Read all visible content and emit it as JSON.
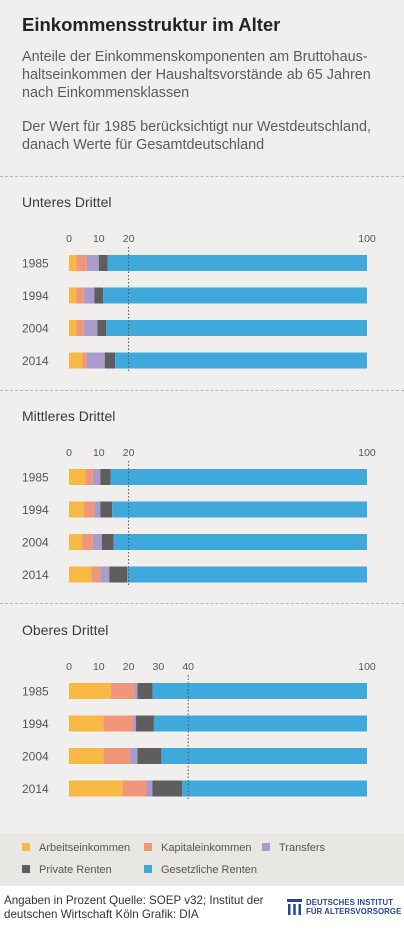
{
  "header": {
    "title": "Einkommensstruktur im Alter",
    "subtitle": "Anteile der Einkommenskomponenten am Bruttohaus-haltseinkommen der Haushaltsvorstände ab 65 Jahren nach Einkommensklassen",
    "note": "Der Wert für 1985 berücksichtigt nur Westdeutschland, danach Werte für Gesamtdeutschland"
  },
  "colors": {
    "Arbeitseinkommen": "#f7b844",
    "Kapitaleinkommen": "#f0977a",
    "Transfers": "#a99bcb",
    "Private Renten": "#5e5e5e",
    "Gesetzliche Renten": "#3fa9dc"
  },
  "legend": {
    "items": [
      "Arbeitseinkommen",
      "Kapitaleinkommen",
      "Transfers",
      "Private Renten",
      "Gesetzliche Renten"
    ]
  },
  "footer": {
    "source": "Angaben in Prozent  Quelle: SOEP v32; Institut der deutschen Wirtschaft Köln Grafik: DIA",
    "logo_line1": "DEUTSCHES INSTITUT",
    "logo_line2": "FÜR ALTERSVORSORGE"
  },
  "chart_data": [
    {
      "type": "bar",
      "orientation": "horizontal",
      "stacked": true,
      "title": "Unteres Drittel",
      "categories": [
        "1985",
        "1994",
        "2004",
        "2014"
      ],
      "xlim": [
        0,
        100
      ],
      "xticks": [
        0,
        10,
        20,
        100
      ],
      "reference_line": 20,
      "series": [
        {
          "name": "Arbeitseinkommen",
          "values": [
            2.5,
            2.5,
            2.5,
            4.5
          ]
        },
        {
          "name": "Kapitaleinkommen",
          "values": [
            3.5,
            2.5,
            2.5,
            1.5
          ]
        },
        {
          "name": "Transfers",
          "values": [
            4,
            3.5,
            4.5,
            6
          ]
        },
        {
          "name": "Private Renten",
          "values": [
            3,
            3,
            3,
            3.5
          ]
        },
        {
          "name": "Gesetzliche Renten",
          "values": [
            87,
            88.5,
            87.5,
            84.5
          ]
        }
      ]
    },
    {
      "type": "bar",
      "orientation": "horizontal",
      "stacked": true,
      "title": "Mittleres Drittel",
      "categories": [
        "1985",
        "1994",
        "2004",
        "2014"
      ],
      "xlim": [
        0,
        100
      ],
      "xticks": [
        0,
        10,
        20,
        100
      ],
      "reference_line": 20,
      "series": [
        {
          "name": "Arbeitseinkommen",
          "values": [
            5.5,
            5,
            4.5,
            7.5
          ]
        },
        {
          "name": "Kapitaleinkommen",
          "values": [
            2.5,
            3.5,
            3.5,
            3
          ]
        },
        {
          "name": "Transfers",
          "values": [
            2.5,
            2,
            3,
            3
          ]
        },
        {
          "name": "Private Renten",
          "values": [
            3.5,
            4,
            4,
            6
          ]
        },
        {
          "name": "Gesetzliche Renten",
          "values": [
            86,
            85.5,
            85,
            80.5
          ]
        }
      ]
    },
    {
      "type": "bar",
      "orientation": "horizontal",
      "stacked": true,
      "title": "Oberes Drittel",
      "categories": [
        "1985",
        "1994",
        "2004",
        "2014"
      ],
      "xlim": [
        0,
        100
      ],
      "xticks": [
        0,
        10,
        20,
        30,
        40,
        100
      ],
      "reference_line": 40,
      "series": [
        {
          "name": "Arbeitseinkommen",
          "values": [
            14,
            11.5,
            11.5,
            18
          ]
        },
        {
          "name": "Kapitaleinkommen",
          "values": [
            8,
            10,
            9,
            8
          ]
        },
        {
          "name": "Transfers",
          "values": [
            1,
            1,
            2.5,
            2
          ]
        },
        {
          "name": "Private Renten",
          "values": [
            5,
            6,
            8,
            10
          ]
        },
        {
          "name": "Gesetzliche Renten",
          "values": [
            72,
            71.5,
            69,
            62
          ]
        }
      ]
    }
  ]
}
